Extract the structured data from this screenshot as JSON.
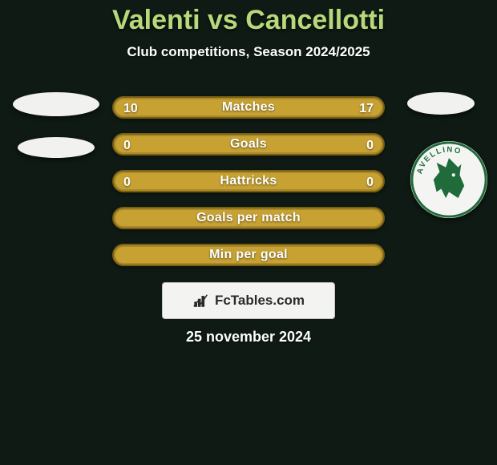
{
  "background_color": "#0f1a14",
  "title": {
    "text": "Valenti vs Cancellotti",
    "color": "#b7d97a",
    "fontsize": 34
  },
  "subtitle": {
    "text": "Club competitions, Season 2024/2025",
    "color": "#ffffff",
    "fontsize": 17
  },
  "stats": {
    "label_color": "#ffffff",
    "label_fontsize": 16,
    "value_color": "#ffffff",
    "value_fontsize": 16,
    "row_background": "#c7a233",
    "row_border": "#7a5f12",
    "rows": [
      {
        "label": "Matches",
        "left": "10",
        "right": "17"
      },
      {
        "label": "Goals",
        "left": "0",
        "right": "0"
      },
      {
        "label": "Hattricks",
        "left": "0",
        "right": "0"
      },
      {
        "label": "Goals per match",
        "left": "",
        "right": ""
      },
      {
        "label": "Min per goal",
        "left": "",
        "right": ""
      }
    ]
  },
  "left_side": {
    "ellipse1": {
      "width": 108,
      "height": 30,
      "color": "#f1f1ef"
    },
    "ellipse2": {
      "width": 96,
      "height": 26,
      "color": "#f1f1ef",
      "top_gap": 26
    }
  },
  "right_side": {
    "ellipse1": {
      "width": 84,
      "height": 28,
      "color": "#f1f1ef"
    },
    "club_badge": {
      "bg": "#f4f5f3",
      "ring_text": "AVELLINO",
      "ring_color": "#1f6b3a",
      "wolf_color": "#1f6b3a"
    }
  },
  "fctables": {
    "bg": "#f3f3f1",
    "text": "FcTables.com",
    "text_color": "#2a2a2a",
    "fontsize": 17,
    "icon_color": "#2a2a2a"
  },
  "date": {
    "text": "25 november 2024",
    "color": "#ffffff",
    "fontsize": 18
  }
}
